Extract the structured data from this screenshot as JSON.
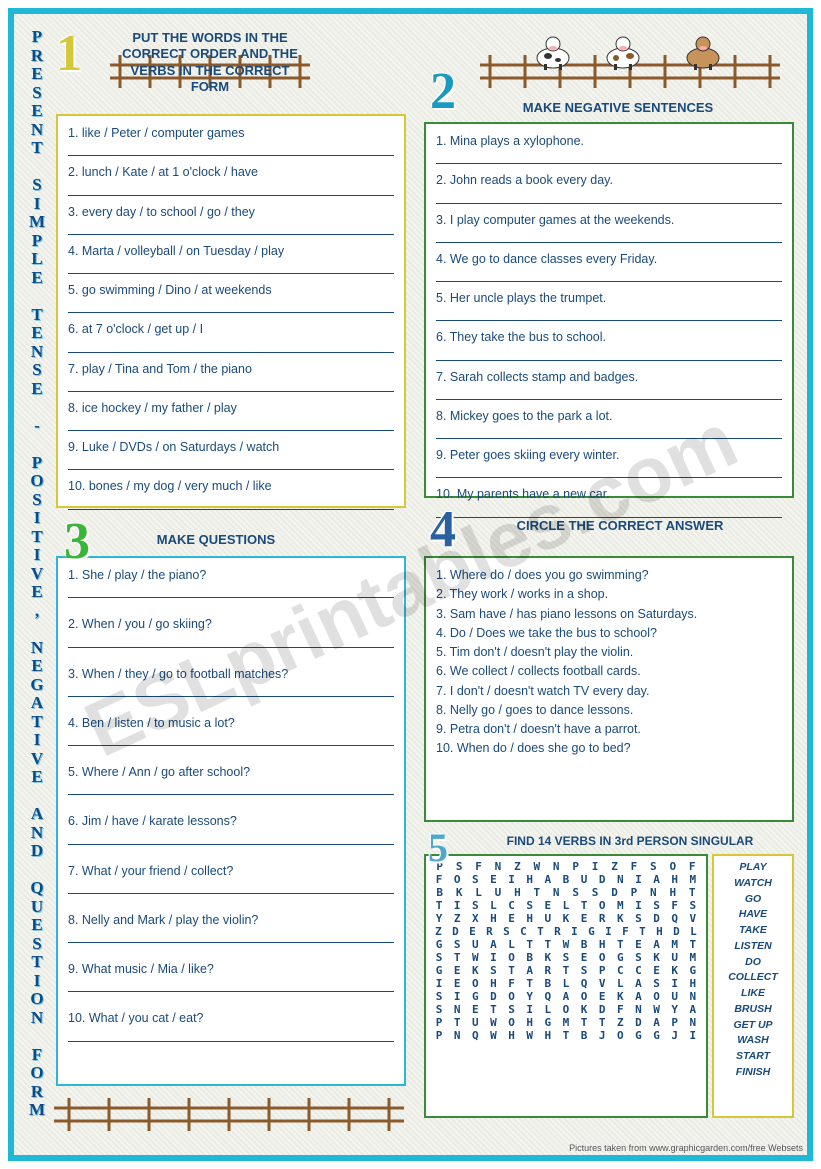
{
  "watermark": "ESLprintables.com",
  "sideTitle": "PRESENT SIMPLE TENSE - POSITIVE, NEGATIVE AND QUESTION FORM",
  "numbers": {
    "n1": "1",
    "n2": "2",
    "n3": "3",
    "n4": "4",
    "n5": "5"
  },
  "instructions": {
    "i1": "PUT THE WORDS IN THE CORRECT ORDER AND THE VERBS IN THE CORRECT FORM",
    "i2": "MAKE NEGATIVE SENTENCES",
    "i3": "MAKE QUESTIONS",
    "i4": "CIRCLE THE CORRECT ANSWER",
    "i5": "FIND 14 VERBS IN 3rd PERSON SINGULAR"
  },
  "ex1": [
    "1. like / Peter / computer games",
    "2. lunch / Kate / at 1 o'clock / have",
    "3. every day / to school / go / they",
    "4. Marta / volleyball / on Tuesday / play",
    "5. go swimming / Dino / at weekends",
    "6. at 7 o'clock / get up / I",
    "7. play / Tina and Tom / the piano",
    "8. ice hockey / my father / play",
    "9. Luke / DVDs / on Saturdays / watch",
    "10. bones / my dog / very much / like"
  ],
  "ex2": [
    "1. Mina plays a xylophone.",
    "2. John reads a book every day.",
    "3. I play computer games at the weekends.",
    "4. We go to dance classes every Friday.",
    "5. Her uncle plays the trumpet.",
    "6. They take the bus to school.",
    "7. Sarah collects stamp and badges.",
    "8. Mickey goes to the park a lot.",
    "9. Peter goes skiing every winter.",
    "10. My parents have a new car."
  ],
  "ex3": [
    "1. She / play / the piano?",
    "2. When / you / go skiing?",
    "3. When / they / go to football matches?",
    "4. Ben / listen / to music a lot?",
    "5. Where / Ann / go after school?",
    "6. Jim / have / karate lessons?",
    "7. What / your friend / collect?",
    "8. Nelly and Mark / play the violin?",
    "9. What music / Mia / like?",
    "10. What / you cat / eat?"
  ],
  "ex4": [
    "1. Where do / does you go swimming?",
    "2. They work / works in a shop.",
    "3. Sam have / has piano lessons on Saturdays.",
    "4. Do / Does we take the bus to school?",
    "5. Tim don't / doesn't play the violin.",
    "6. We collect / collects football cards.",
    "7. I don't / doesn't watch TV every day.",
    "8. Nelly go / goes to dance lessons.",
    "9. Petra don't / doesn't have a parrot.",
    "10. When do / does she go to bed?"
  ],
  "wordsearch": [
    "PSFNZWNPIZFSOF",
    "FOSEIHABUDNIAHM",
    "BKLUHTNSSDPNHT",
    "TISLCSELTOMISFS",
    "YZXHEHUKERKSDQV",
    "ZDERSCTRIGIFTHDL",
    "GSUALTTWBHTEAMT",
    "STWIOBKSEOGSKUM",
    "GEKSTARTSPCCEKG",
    "IEOHFTBLQVLASIH",
    "SIGDOYQAOEKAOUN",
    "SNETSILOKDFNWYA",
    "PTUWOHGMTTZDAPN",
    "PNQWHWHTBJOGGJI"
  ],
  "wordbank": [
    "PLAY",
    "WATCH",
    "GO",
    "HAVE",
    "TAKE",
    "LISTEN",
    "DO",
    "COLLECT",
    "LIKE",
    "BRUSH",
    "GET UP",
    "WASH",
    "START",
    "FINISH"
  ],
  "credit": "Pictures taken from www.graphicgarden.com/free Websets",
  "colors": {
    "border": "#1fb8d6",
    "yellow": "#d4c73a",
    "green": "#3a8a3a",
    "cyan": "#2fb5d6",
    "blue": "#2a5fa0",
    "text": "#1a4a7a"
  }
}
